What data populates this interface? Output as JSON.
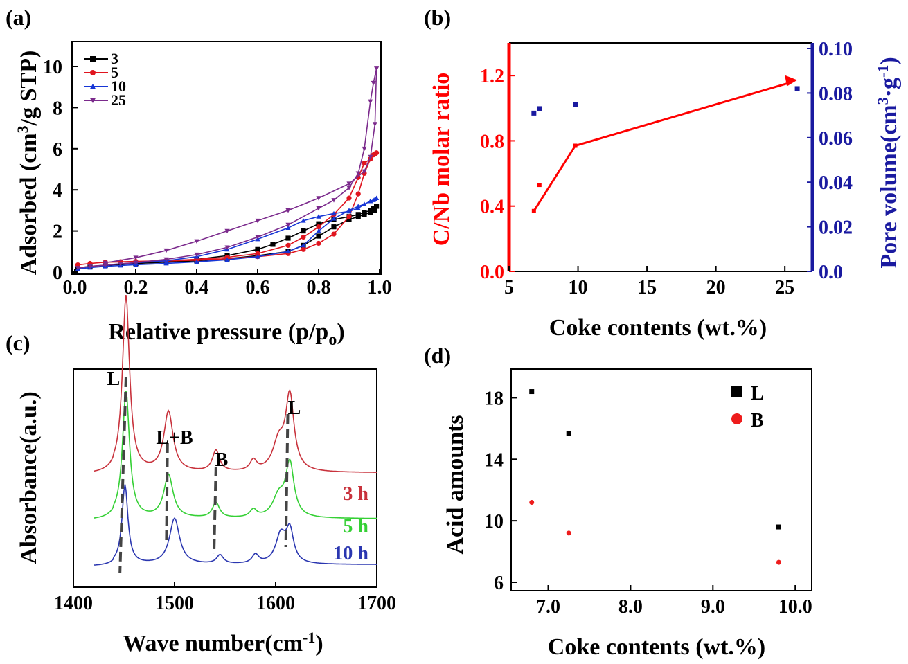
{
  "chart_data": [
    {
      "panel": "(a)",
      "type": "line",
      "xlabel": "Relative pressure (p/p",
      "xlabel_sub": "o",
      "xlabel_end": ")",
      "ylabel": "Adsorbed (cm",
      "ylabel_sup": "3",
      "ylabel_end": "/g STP)",
      "xlim": [
        0,
        1.0
      ],
      "ylim": [
        0,
        11.2
      ],
      "xticks": [
        "0.0",
        "0.2",
        "0.4",
        "0.6",
        "0.8",
        "1.0"
      ],
      "yticks": [
        "0",
        "2",
        "4",
        "6",
        "8",
        "10"
      ],
      "legend_position": "top-left",
      "series": [
        {
          "name": "3",
          "color": "#000000",
          "marker": "square",
          "x": [
            0.01,
            0.05,
            0.1,
            0.15,
            0.2,
            0.3,
            0.4,
            0.5,
            0.6,
            0.65,
            0.7,
            0.75,
            0.8,
            0.85,
            0.9,
            0.93,
            0.95,
            0.97,
            0.98,
            0.99,
            0.985,
            0.97,
            0.95,
            0.93,
            0.9,
            0.85,
            0.8,
            0.75,
            0.7,
            0.6,
            0.5,
            0.4,
            0.3,
            0.2,
            0.1
          ],
          "y": [
            0.2,
            0.28,
            0.33,
            0.38,
            0.42,
            0.5,
            0.62,
            0.8,
            1.1,
            1.35,
            1.65,
            2.0,
            2.35,
            2.55,
            2.7,
            2.8,
            2.9,
            3.0,
            3.1,
            3.2,
            3.0,
            2.9,
            2.8,
            2.7,
            2.55,
            2.2,
            1.75,
            1.3,
            1.0,
            0.8,
            0.65,
            0.55,
            0.48,
            0.42,
            0.33
          ]
        },
        {
          "name": "5",
          "color": "#e0141e",
          "marker": "circle",
          "x": [
            0.01,
            0.05,
            0.1,
            0.15,
            0.2,
            0.3,
            0.4,
            0.5,
            0.6,
            0.7,
            0.75,
            0.8,
            0.85,
            0.9,
            0.93,
            0.95,
            0.97,
            0.98,
            0.99,
            0.985,
            0.97,
            0.95,
            0.93,
            0.9,
            0.85,
            0.8,
            0.75,
            0.7,
            0.6,
            0.5,
            0.4,
            0.3,
            0.2,
            0.1
          ],
          "y": [
            0.35,
            0.42,
            0.48,
            0.5,
            0.52,
            0.55,
            0.62,
            0.72,
            0.9,
            1.3,
            1.7,
            2.2,
            2.8,
            3.6,
            4.6,
            5.3,
            5.5,
            5.7,
            5.8,
            5.75,
            5.5,
            4.8,
            3.8,
            2.7,
            1.85,
            1.4,
            1.1,
            0.9,
            0.75,
            0.65,
            0.58,
            0.54,
            0.5,
            0.48
          ]
        },
        {
          "name": "10",
          "color": "#1636d6",
          "marker": "triangle",
          "x": [
            0.01,
            0.05,
            0.1,
            0.15,
            0.2,
            0.3,
            0.4,
            0.5,
            0.6,
            0.7,
            0.75,
            0.8,
            0.85,
            0.9,
            0.93,
            0.95,
            0.97,
            0.98,
            0.99,
            0.985,
            0.97,
            0.95,
            0.93,
            0.9,
            0.85,
            0.8,
            0.75,
            0.7,
            0.6,
            0.5,
            0.4,
            0.3,
            0.2,
            0.1
          ],
          "y": [
            0.15,
            0.22,
            0.28,
            0.32,
            0.36,
            0.42,
            0.5,
            0.6,
            0.75,
            1.0,
            1.3,
            2.0,
            2.6,
            3.0,
            3.2,
            3.3,
            3.45,
            3.5,
            3.6,
            3.55,
            3.45,
            3.3,
            3.1,
            2.95,
            2.85,
            2.7,
            2.5,
            2.15,
            1.6,
            1.1,
            0.75,
            0.55,
            0.45,
            0.35
          ]
        },
        {
          "name": "25",
          "color": "#7b2a8c",
          "marker": "triangle-down",
          "x": [
            0.01,
            0.05,
            0.1,
            0.15,
            0.2,
            0.3,
            0.4,
            0.5,
            0.6,
            0.7,
            0.8,
            0.85,
            0.9,
            0.93,
            0.95,
            0.97,
            0.98,
            0.99,
            0.985,
            0.97,
            0.95,
            0.9,
            0.8,
            0.7,
            0.6,
            0.5,
            0.4,
            0.3,
            0.2,
            0.1
          ],
          "y": [
            0.2,
            0.28,
            0.34,
            0.4,
            0.46,
            0.62,
            0.85,
            1.2,
            1.7,
            2.3,
            3.1,
            3.5,
            4.1,
            4.8,
            6.0,
            8.3,
            9.2,
            9.9,
            7.2,
            5.6,
            4.9,
            4.3,
            3.6,
            3.0,
            2.5,
            2.0,
            1.5,
            1.05,
            0.7,
            0.45
          ]
        }
      ]
    },
    {
      "panel": "(b)",
      "type": "scatter",
      "xlabel": "Coke contents (wt.%)",
      "ylabel_left": "C/Nb molar ratio",
      "ylabel_right": "Pore volume(cm",
      "ylabel_right_sup": "3",
      "ylabel_right_mid": "·g",
      "ylabel_right_sup2": "-1",
      "ylabel_right_end": ")",
      "xlim": [
        5,
        27
      ],
      "ylim_left": [
        0,
        1.4
      ],
      "ylim_right": [
        0,
        0.1
      ],
      "xticks": [
        "5",
        "10",
        "15",
        "20",
        "25"
      ],
      "yticks_left": [
        "0.0",
        "0.4",
        "0.8",
        "1.2"
      ],
      "yticks_right": [
        "0.0",
        "0.02",
        "0.04",
        "0.06",
        "0.08",
        "0.10"
      ],
      "left_color": "#ff0000",
      "right_color": "#1a1aa0",
      "cnb_line": {
        "x": [
          6.8,
          9.8,
          25.5
        ],
        "y": [
          0.37,
          0.77,
          1.16
        ]
      },
      "cnb_points": {
        "x": [
          7.2,
          25.9
        ],
        "y": [
          0.53,
          1.12
        ]
      },
      "pore_points": {
        "x": [
          6.8,
          7.2,
          9.8,
          25.9
        ],
        "y": [
          0.071,
          0.073,
          0.075,
          0.082
        ]
      }
    },
    {
      "panel": "(c)",
      "type": "line",
      "xlabel": "Wave number(cm",
      "xlabel_sup": "-1",
      "xlabel_end": ")",
      "ylabel": "Absorbance(a.u.)",
      "xlim": [
        1400,
        1700
      ],
      "xticks": [
        "1400",
        "1500",
        "1600",
        "1700"
      ],
      "peak_labels": [
        {
          "text": "L",
          "x": 1452
        },
        {
          "text": "L+B",
          "x": 1493
        },
        {
          "text": "B",
          "x": 1541
        },
        {
          "text": "L",
          "x": 1612
        }
      ],
      "series": [
        {
          "name": "3 h",
          "color": "#c8323c",
          "offset": 0.52
        },
        {
          "name": "5 h",
          "color": "#35d035",
          "offset": 0.26
        },
        {
          "name": "10 h",
          "color": "#2a36b0",
          "offset": 0.0
        }
      ]
    },
    {
      "panel": "(d)",
      "type": "scatter",
      "xlabel": "Coke contents (wt.%)",
      "ylabel": "Acid amounts",
      "xlim": [
        6.55,
        10.2
      ],
      "ylim": [
        6,
        20
      ],
      "xticks": [
        "7.0",
        "8.0",
        "9.0",
        "10.0"
      ],
      "yticks": [
        "6",
        "10",
        "14",
        "18"
      ],
      "legend_position": "top-right",
      "series": [
        {
          "name": "L",
          "color": "#000000",
          "marker": "square",
          "x": [
            6.8,
            7.25,
            9.8
          ],
          "y": [
            18.4,
            15.7,
            9.6
          ]
        },
        {
          "name": "B",
          "color": "#ee1c1c",
          "marker": "circle",
          "x": [
            6.8,
            7.25,
            9.8
          ],
          "y": [
            11.2,
            9.2,
            7.3
          ]
        }
      ]
    }
  ]
}
